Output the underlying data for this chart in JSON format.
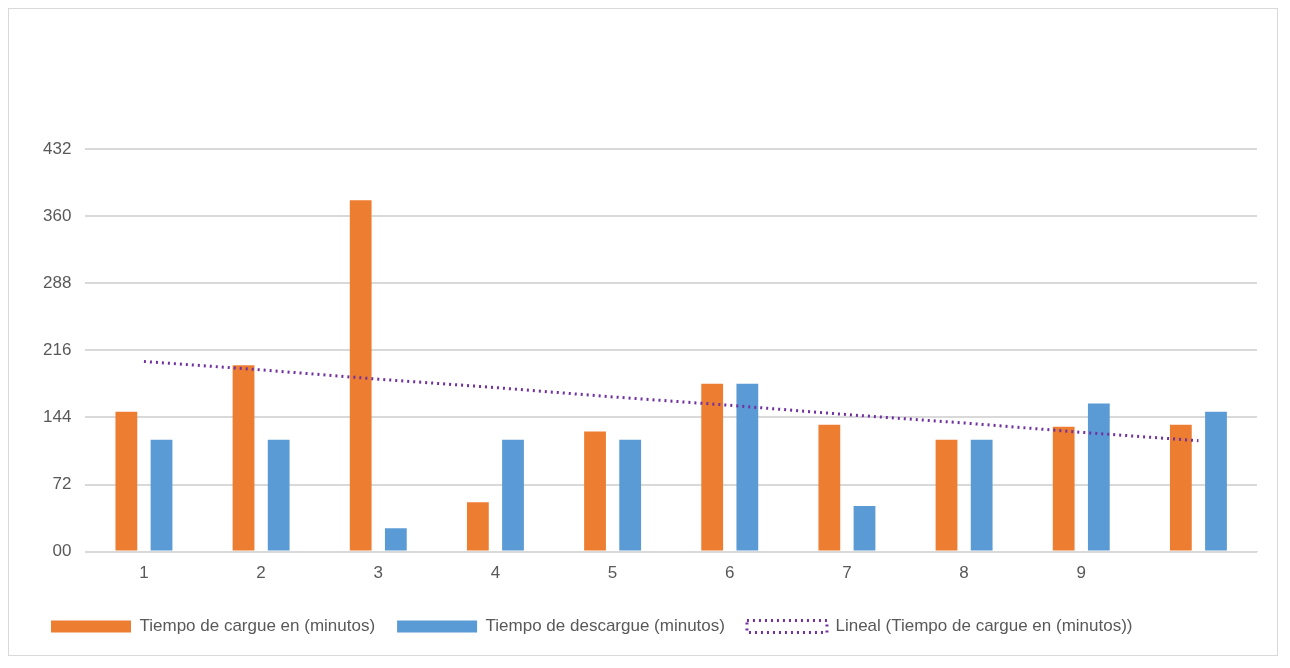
{
  "chart_data": {
    "type": "bar",
    "categories": [
      "1",
      "2",
      "3",
      "4",
      "5",
      "6",
      "7",
      "8",
      "9",
      null
    ],
    "series": [
      {
        "name": "Tiempo de cargue en (minutos)",
        "color": "#ed7d31",
        "values": [
          150,
          200,
          377,
          53,
          129,
          180,
          136,
          120,
          134,
          136
        ]
      },
      {
        "name": "Tiempo de descargue (minutos)",
        "color": "#5b9bd5",
        "values": [
          120,
          120,
          25,
          120,
          120,
          180,
          49,
          120,
          159,
          150
        ]
      },
      {
        "name": "Lineal (Tiempo de cargue en (minutos))",
        "type": "line",
        "color": "#7030a0",
        "line_style": "dotted",
        "marker": "none",
        "values": [
          204,
          195,
          185,
          176,
          166,
          157,
          147,
          138,
          128,
          119
        ]
      }
    ],
    "ylim": [
      0,
      432
    ],
    "yticks": [
      {
        "value": 0,
        "label": "00"
      },
      72,
      144,
      216,
      288,
      360,
      432
    ],
    "grid": "y",
    "legend": "bottom"
  }
}
